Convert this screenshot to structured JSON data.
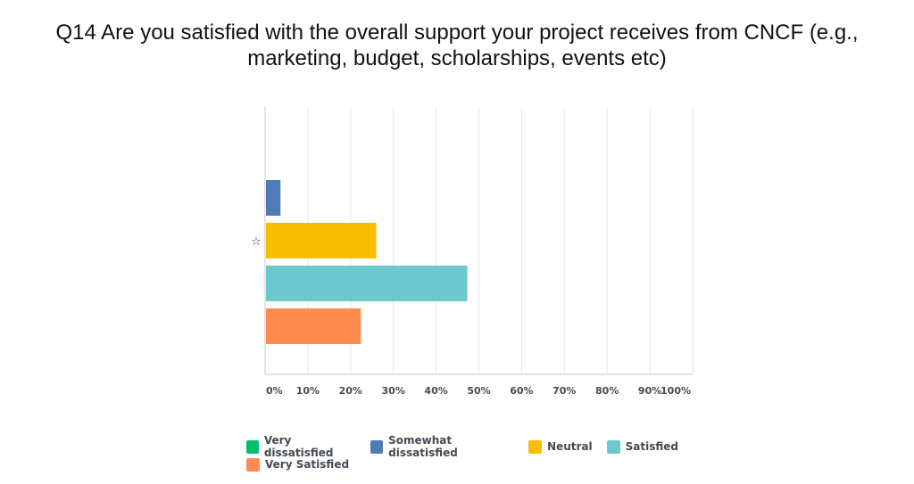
{
  "title_lines": [
    "Q14 Are you satisfied with the overall support your project receives from CNCF (e.g.,",
    "marketing, budget, scholarships, events etc)"
  ],
  "chart_data": {
    "type": "bar",
    "orientation": "horizontal",
    "categories": [
      "☆"
    ],
    "series": [
      {
        "name": "Very dissatisfied",
        "values": [
          0
        ],
        "color": "#00bf6f"
      },
      {
        "name": "Somewhat dissatisfied",
        "values": [
          3.6
        ],
        "color": "#507cb6"
      },
      {
        "name": "Neutral",
        "values": [
          26
        ],
        "color": "#f9be00"
      },
      {
        "name": "Satisfied",
        "values": [
          47.3
        ],
        "color": "#6bc8cd"
      },
      {
        "name": "Very Satisfied",
        "values": [
          22.4
        ],
        "color": "#ff8b4f"
      }
    ],
    "xlim": [
      0,
      100
    ],
    "xticks": [
      "0%",
      "10%",
      "20%",
      "30%",
      "40%",
      "50%",
      "60%",
      "70%",
      "80%",
      "90%",
      "100%"
    ],
    "grid": true,
    "legend_position": "bottom"
  }
}
